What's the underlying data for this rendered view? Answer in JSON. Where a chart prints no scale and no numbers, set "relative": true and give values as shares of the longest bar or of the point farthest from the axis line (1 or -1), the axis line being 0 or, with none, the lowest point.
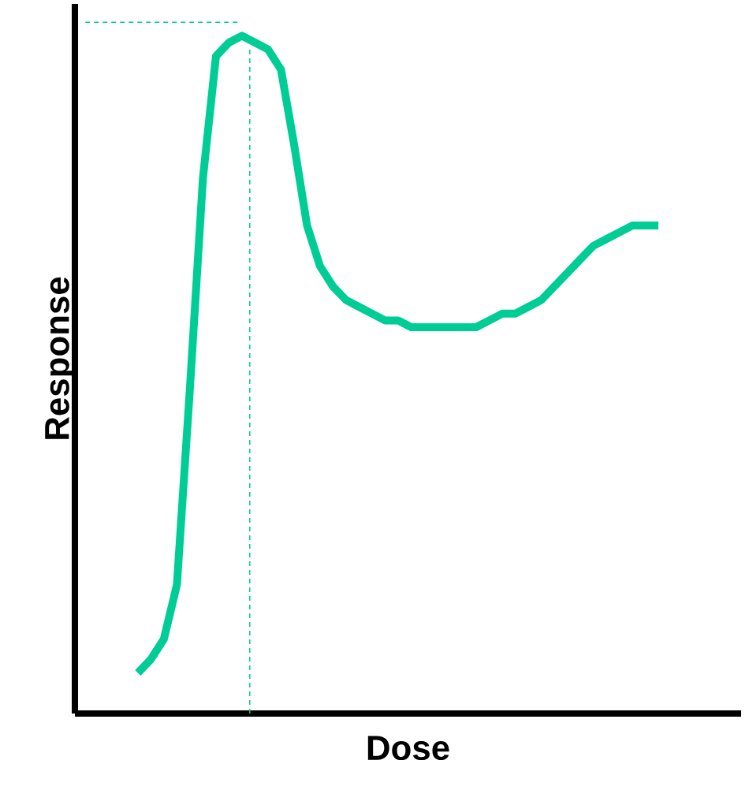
{
  "chart_data": {
    "type": "line",
    "relative": true,
    "xlabel": "Dose",
    "ylabel": "Response",
    "categories": [
      null,
      null,
      null,
      null,
      null,
      null,
      null,
      null,
      null,
      null,
      null,
      null,
      null,
      null,
      null,
      null,
      null,
      null,
      null,
      null,
      null,
      null,
      null,
      null,
      null,
      null,
      null,
      null,
      null,
      null,
      null,
      null,
      null,
      null,
      null,
      null,
      null,
      null,
      null,
      null,
      null
    ],
    "series": [
      {
        "color": "#00cc96",
        "values": [
          0.06,
          0.08,
          0.11,
          0.19,
          0.48,
          0.79,
          0.97,
          0.99,
          1.0,
          0.99,
          0.98,
          0.95,
          0.84,
          0.72,
          0.66,
          0.63,
          0.61,
          0.6,
          0.59,
          0.58,
          0.58,
          0.57,
          0.57,
          0.57,
          0.57,
          0.57,
          0.57,
          0.58,
          0.59,
          0.59,
          0.6,
          0.61,
          0.63,
          0.65,
          0.67,
          0.69,
          0.7,
          0.71,
          0.72,
          0.72,
          0.72
        ]
      }
    ],
    "ref_lines": [
      {
        "axis": "y",
        "value": 1.02,
        "color": "#00cc96",
        "line_style": "dashed"
      }
    ],
    "marker": "none",
    "line_style": "solid"
  }
}
